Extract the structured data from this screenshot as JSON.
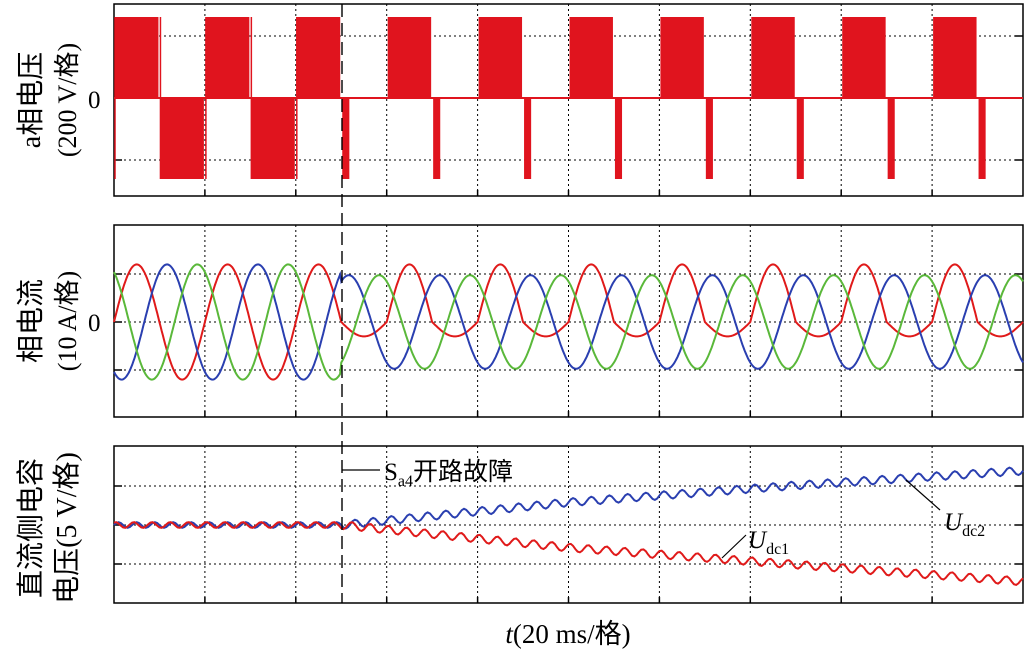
{
  "figure": {
    "panels": [
      {
        "label_line1": "a相电压",
        "label_line2": "(200 V/格)",
        "zero_label": "0"
      },
      {
        "label_line1": "相电流",
        "label_line2": "(10 A/格)",
        "zero_label": "0"
      },
      {
        "label_line1": "直流侧电容",
        "label_line2": "电压(5 V/格)",
        "zero_label": ""
      }
    ],
    "fault_annotation": {
      "main": "S",
      "sub": "a4",
      "suffix": "开路故障"
    },
    "series_labels": [
      {
        "main": "U",
        "sub": "dc1"
      },
      {
        "main": "U",
        "sub": "dc2"
      }
    ],
    "x_axis": {
      "var": "t",
      "unit": "(20 ms/格)"
    }
  },
  "chart_data": [
    {
      "type": "line",
      "title": "",
      "ylabel": "a相电压(200 V/格)",
      "x_unit": "ms",
      "x_range": [
        0,
        200
      ],
      "y_unit": "V",
      "y_range": [
        -300,
        300
      ],
      "fault_time": 50,
      "series": [
        {
          "name": "",
          "color": "#e0141e",
          "description": "PWM phase voltage, fundamental period 20 ms; before the fault it alternates about +270 V and -270 V, after the fault only the positive half remains plus short negative spikes",
          "pre_fault_pulses": [
            [
              0,
              10,
              270
            ],
            [
              10,
              20,
              -270
            ],
            [
              20,
              30,
              270
            ],
            [
              30,
              40,
              -270
            ],
            [
              40,
              50,
              270
            ]
          ],
          "post_fault_pulses": [
            [
              60,
              70,
              270
            ],
            [
              80,
              90,
              270
            ],
            [
              100,
              110,
              270
            ],
            [
              120,
              130,
              270
            ],
            [
              140,
              150,
              270
            ],
            [
              160,
              170,
              270
            ],
            [
              180,
              190,
              270
            ]
          ],
          "post_fault_spikes": [
            [
              50,
              52,
              -270
            ],
            [
              70,
              72,
              -270
            ],
            [
              90,
              92,
              -270
            ],
            [
              110,
              112,
              -270
            ],
            [
              130,
              132,
              -270
            ],
            [
              150,
              152,
              -270
            ],
            [
              170,
              172,
              -270
            ],
            [
              190,
              192,
              -270
            ]
          ]
        }
      ]
    },
    {
      "type": "line",
      "title": "",
      "ylabel": "相电流(10 A/格)",
      "x_unit": "ms",
      "x_range": [
        0,
        200
      ],
      "y_unit": "A",
      "y_range": [
        -15,
        15
      ],
      "fault_time": 50,
      "period_ms": 20,
      "series": [
        {
          "name": "",
          "color": "#e01a1a",
          "amplitude_pre": 16,
          "amplitude_post_positive": 16,
          "amplitude_post_negative": 4,
          "phase_deg": 0
        },
        {
          "name": "",
          "color": "#2a3fb0",
          "amplitude_pre": 16,
          "amplitude_post_positive": 13,
          "amplitude_post_negative": 13,
          "phase_deg": -120
        },
        {
          "name": "",
          "color": "#5ab83a",
          "amplitude_pre": 16,
          "amplitude_post_positive": 13,
          "amplitude_post_negative": 13,
          "phase_deg": 120
        }
      ]
    },
    {
      "type": "line",
      "title": "",
      "ylabel": "直流侧电容电压(5 V/格)",
      "x_unit": "ms",
      "x_range": [
        0,
        200
      ],
      "y_unit": "V",
      "y_range": [
        -4,
        4
      ],
      "y_note": "relative to the pre-fault value",
      "fault_time": 50,
      "series": [
        {
          "name": "Udc2",
          "color": "#2a3fb0",
          "x": [
            0,
            50,
            100,
            150,
            200
          ],
          "y": [
            0,
            0,
            2.0,
            3.5,
            4.8
          ]
        },
        {
          "name": "Udc1",
          "color": "#e01a1a",
          "x": [
            0,
            50,
            100,
            150,
            200
          ],
          "y": [
            0,
            0,
            -2.0,
            -3.5,
            -5.0
          ]
        }
      ]
    }
  ]
}
